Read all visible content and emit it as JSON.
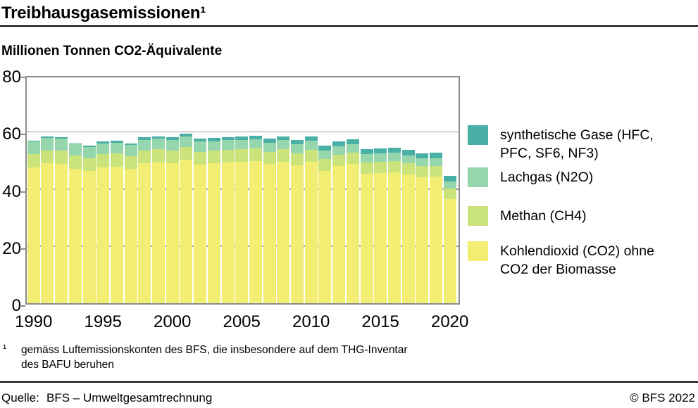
{
  "header": {
    "title": "Treibhausgasemissionen¹",
    "subtitle": "Millionen Tonnen CO2-Äquivalente"
  },
  "footnote": {
    "marker": "¹",
    "line1": "gemäss Luftemissionskonten des BFS, die insbesondere auf dem THG-Inventar",
    "line2": "des BAFU beruhen"
  },
  "source": {
    "label": "Quelle:",
    "value": "BFS – Umweltgesamtrechnung",
    "copyright": "© BFS 2022"
  },
  "chart_data": {
    "type": "bar",
    "stacked": true,
    "title": "Treibhausgasemissionen",
    "ylabel": "Millionen Tonnen CO2-Äquivalente",
    "ylim": [
      0,
      80
    ],
    "yticks": [
      0,
      20,
      40,
      60,
      80
    ],
    "xtick_years": [
      1990,
      1995,
      2000,
      2005,
      2010,
      2015,
      2020
    ],
    "grid": true,
    "legend_position": "right",
    "x": [
      1990,
      1991,
      1992,
      1993,
      1994,
      1995,
      1996,
      1997,
      1998,
      1999,
      2000,
      2001,
      2002,
      2003,
      2004,
      2005,
      2006,
      2007,
      2008,
      2009,
      2010,
      2011,
      2012,
      2013,
      2014,
      2015,
      2016,
      2017,
      2018,
      2019,
      2020
    ],
    "series": [
      {
        "key": "co2",
        "label": "Kohlendioxid (CO2) ohne CO2 der Biomasse",
        "color": "#F2EE74",
        "values": [
          47.6,
          48.9,
          48.8,
          46.9,
          46.2,
          47.4,
          47.7,
          46.9,
          48.9,
          49.3,
          49.1,
          50.3,
          48.6,
          48.9,
          49.3,
          49.5,
          49.8,
          48.7,
          49.6,
          48.3,
          49.6,
          46.4,
          47.9,
          48.7,
          45.3,
          45.5,
          45.8,
          45.0,
          44.0,
          44.2,
          36.4
        ]
      },
      {
        "key": "ch4",
        "label": "Methan (CH4)",
        "color": "#CAE37A",
        "values": [
          4.7,
          4.6,
          4.6,
          4.7,
          4.6,
          4.7,
          4.7,
          4.6,
          4.6,
          4.5,
          4.4,
          4.4,
          4.4,
          4.4,
          4.3,
          4.3,
          4.3,
          4.2,
          4.2,
          4.2,
          4.1,
          4.1,
          4.1,
          4.0,
          4.0,
          4.0,
          3.9,
          3.9,
          3.9,
          3.8,
          3.8
        ]
      },
      {
        "key": "n2o",
        "label": "Lachgas (N2O)",
        "color": "#96D6AD",
        "values": [
          4.2,
          4.4,
          4.3,
          4.0,
          3.9,
          3.9,
          3.8,
          3.8,
          3.7,
          3.7,
          3.6,
          3.6,
          3.5,
          3.4,
          3.4,
          3.3,
          3.3,
          3.2,
          3.2,
          3.1,
          3.1,
          3.0,
          3.0,
          3.0,
          2.9,
          2.9,
          2.9,
          2.9,
          2.8,
          2.8,
          2.5
        ]
      },
      {
        "key": "synth",
        "label": "synthetische Gase (HFC, PFC, SF6, NF3)",
        "color": "#4AAFA4",
        "values": [
          0.3,
          0.4,
          0.4,
          0.4,
          0.4,
          0.5,
          0.6,
          0.7,
          0.8,
          0.9,
          1.0,
          1.1,
          1.1,
          1.2,
          1.2,
          1.3,
          1.3,
          1.4,
          1.4,
          1.5,
          1.5,
          1.6,
          1.6,
          1.7,
          1.7,
          1.8,
          1.8,
          1.8,
          1.8,
          1.9,
          1.9
        ]
      }
    ],
    "axis_color": "#8C8C8C",
    "grid_color": "#9C9C9C"
  },
  "legend": {
    "order_note": "top to bottom: synth, n2o, ch4, co2"
  }
}
